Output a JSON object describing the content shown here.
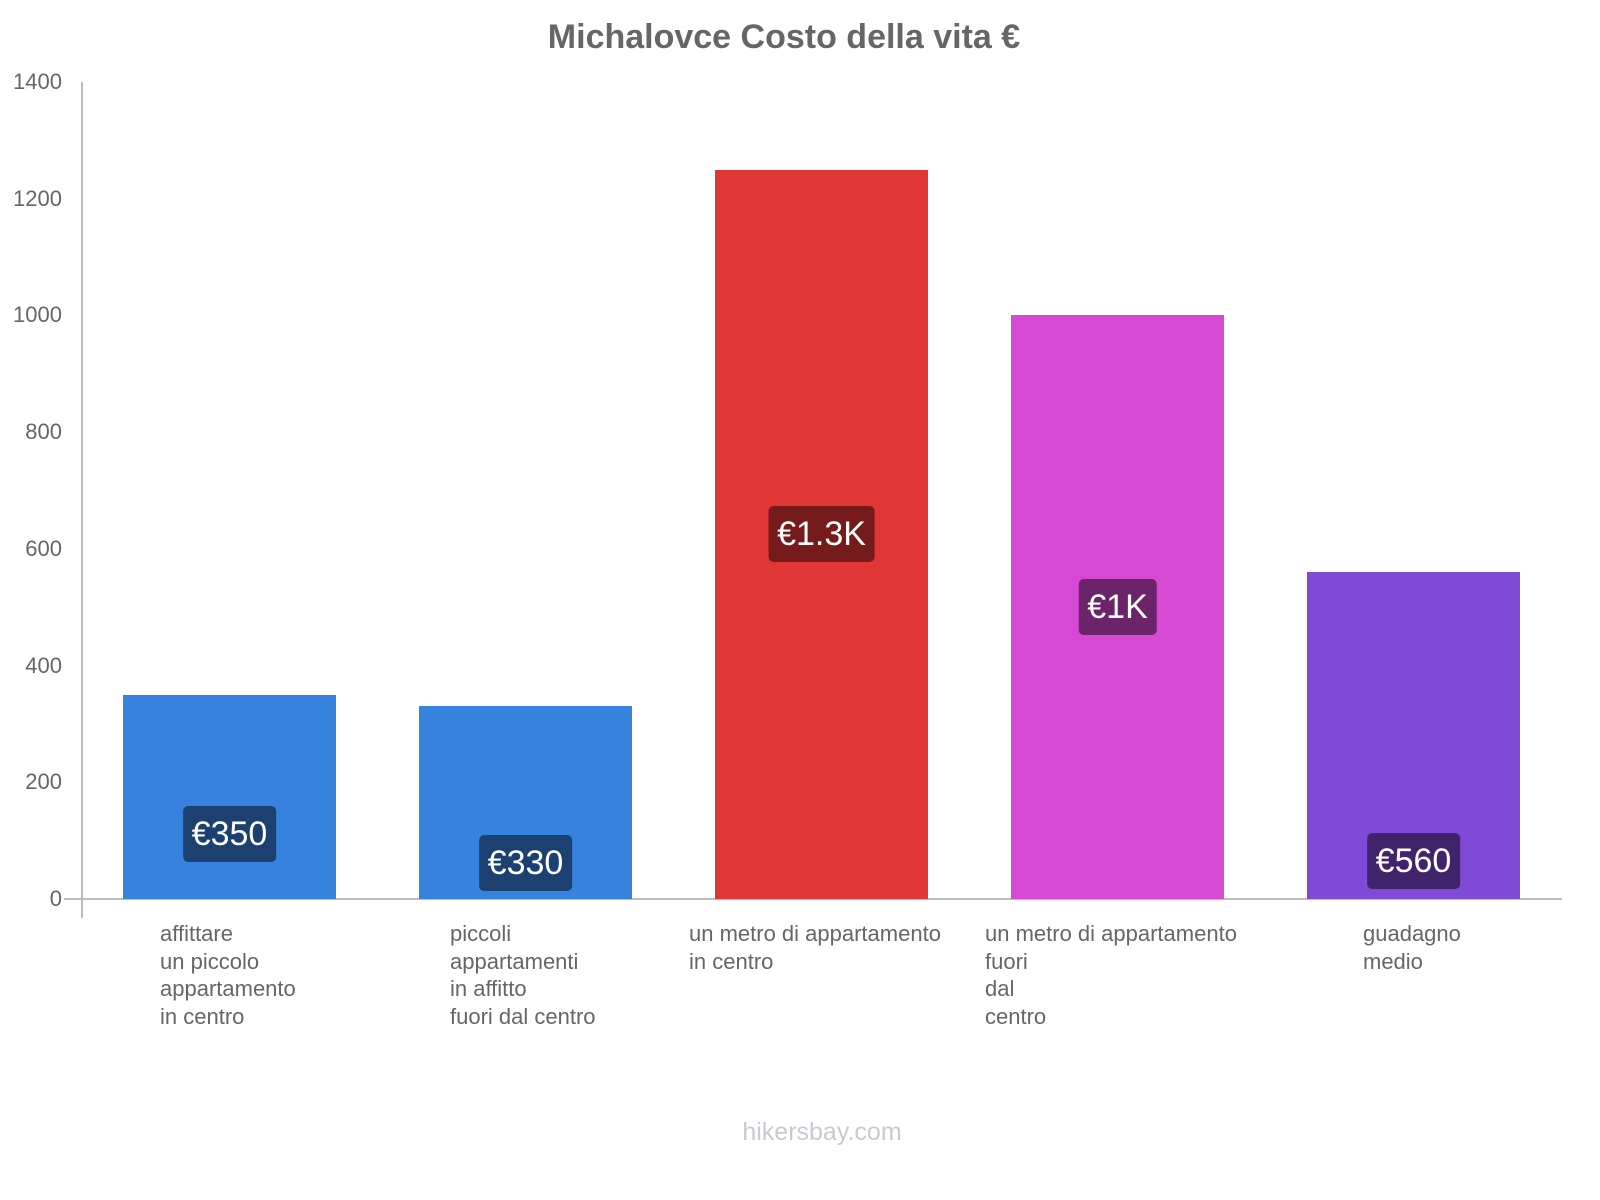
{
  "title": "Michalovce Costo della vita €",
  "watermark": "hikersbay.com",
  "y_ticks": [
    "0",
    "200",
    "400",
    "600",
    "800",
    "1000",
    "1200",
    "1400"
  ],
  "bars": [
    {
      "label": "affittare\nun piccolo\nappartamento\nin centro",
      "value": 350,
      "value_label": "€350",
      "color": "#3682dd",
      "label_bg": "#1c4170"
    },
    {
      "label": "piccoli\nappartamenti\nin affitto\nfuori dal centro",
      "value": 330,
      "value_label": "€330",
      "color": "#3682dd",
      "label_bg": "#1c4170"
    },
    {
      "label": "un metro di appartamento\nin centro",
      "value": 1250,
      "value_label": "€1.3K",
      "color": "#e03636",
      "label_bg": "#761b1b"
    },
    {
      "label": "un metro di appartamento\nfuori\ndal\ncentro",
      "value": 1000,
      "value_label": "€1K",
      "color": "#d649d3",
      "label_bg": "#6b246a"
    },
    {
      "label": "guadagno\nmedio",
      "value": 560,
      "value_label": "€560",
      "color": "#8049d6",
      "label_bg": "#40246b"
    }
  ],
  "chart_data": {
    "type": "bar",
    "title": "Michalovce Costo della vita €",
    "categories": [
      "affittare un piccolo appartamento in centro",
      "piccoli appartamenti in affitto fuori dal centro",
      "un metro di appartamento in centro",
      "un metro di appartamento fuori dal centro",
      "guadagno medio"
    ],
    "values": [
      350,
      330,
      1250,
      1000,
      560
    ],
    "data_labels": [
      "€350",
      "€330",
      "€1.3K",
      "€1K",
      "€560"
    ],
    "colors": [
      "#3682dd",
      "#3682dd",
      "#e03636",
      "#d649d3",
      "#8049d6"
    ],
    "xlabel": "",
    "ylabel": "",
    "ylim": [
      0,
      1400
    ],
    "yticks": [
      0,
      200,
      400,
      600,
      800,
      1000,
      1200,
      1400
    ],
    "grid": false,
    "legend": "none"
  }
}
